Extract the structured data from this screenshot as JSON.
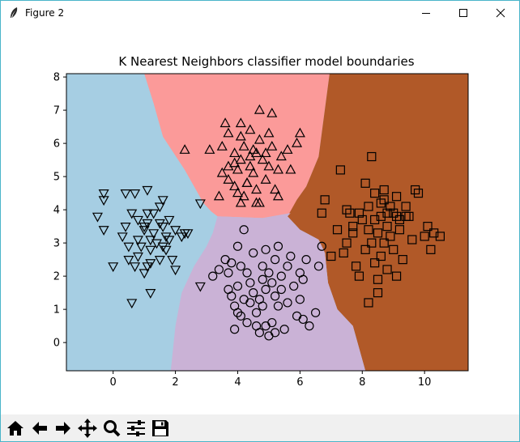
{
  "window": {
    "title": "Figure 2",
    "controls": [
      "minimize",
      "maximize",
      "close"
    ]
  },
  "toolbar": {
    "buttons": [
      {
        "name": "home",
        "icon": "home-icon"
      },
      {
        "name": "back",
        "icon": "arrow-left-icon"
      },
      {
        "name": "forward",
        "icon": "arrow-right-icon"
      },
      {
        "name": "pan",
        "icon": "move-icon"
      },
      {
        "name": "zoom",
        "icon": "magnifier-icon"
      },
      {
        "name": "configure-subplots",
        "icon": "sliders-icon"
      },
      {
        "name": "save",
        "icon": "floppy-disk-icon"
      }
    ]
  },
  "chart_data": {
    "type": "scatter",
    "title": "K Nearest Neighbors classifier model boundaries",
    "xlabel": "",
    "ylabel": "",
    "xlim": [
      -1.5,
      11.4
    ],
    "ylim": [
      -0.85,
      8.1
    ],
    "xticks": [
      0,
      2,
      4,
      6,
      8,
      10
    ],
    "yticks": [
      0,
      1,
      2,
      3,
      4,
      5,
      6,
      7,
      8
    ],
    "grid": false,
    "region_colors": {
      "triangle-down": "#a6cee3",
      "triangle-up": "#fb9a99",
      "circle": "#cab2d6",
      "square": "#b15928"
    },
    "series": [
      {
        "marker": "triangle-down",
        "points": [
          [
            -0.5,
            3.8
          ],
          [
            -0.3,
            4.5
          ],
          [
            -0.3,
            4.3
          ],
          [
            -0.3,
            3.4
          ],
          [
            0,
            2.3
          ],
          [
            0.3,
            3.2
          ],
          [
            0.4,
            3.5
          ],
          [
            0.4,
            4.5
          ],
          [
            0.5,
            2.9
          ],
          [
            0.5,
            2.5
          ],
          [
            0.6,
            1.2
          ],
          [
            0.6,
            3.9
          ],
          [
            0.7,
            4.5
          ],
          [
            0.7,
            2.3
          ],
          [
            0.8,
            3.1
          ],
          [
            0.8,
            2.6
          ],
          [
            0.8,
            3.7
          ],
          [
            0.9,
            2.9
          ],
          [
            1,
            3.5
          ],
          [
            1,
            2.1
          ],
          [
            1,
            3.4
          ],
          [
            1.1,
            4.6
          ],
          [
            1.1,
            3.6
          ],
          [
            1.1,
            3.9
          ],
          [
            1.1,
            2.3
          ],
          [
            1.2,
            3.1
          ],
          [
            1.2,
            2.8
          ],
          [
            1.2,
            2.4
          ],
          [
            1.2,
            1.5
          ],
          [
            1.3,
            3.3
          ],
          [
            1.3,
            3.9
          ],
          [
            1.4,
            3
          ],
          [
            1.5,
            3.6
          ],
          [
            1.5,
            2.5
          ],
          [
            1.5,
            4.1
          ],
          [
            1.6,
            3.5
          ],
          [
            1.6,
            4.3
          ],
          [
            1.6,
            2.9
          ],
          [
            1.7,
            2.8
          ],
          [
            1.7,
            3.2
          ],
          [
            1.8,
            3.1
          ],
          [
            1.8,
            3.7
          ],
          [
            1.9,
            2.5
          ],
          [
            2,
            3.4
          ],
          [
            2,
            2.2
          ],
          [
            2.2,
            3.2
          ],
          [
            2.3,
            3.3
          ],
          [
            2.4,
            3.3
          ],
          [
            2.8,
            4.2
          ],
          [
            2.8,
            1.7
          ]
        ]
      },
      {
        "marker": "triangle-up",
        "points": [
          [
            2.3,
            5.8
          ],
          [
            3.1,
            5.8
          ],
          [
            3.4,
            4.4
          ],
          [
            3.5,
            5.9
          ],
          [
            3.5,
            5.1
          ],
          [
            3.6,
            6.6
          ],
          [
            3.7,
            4.9
          ],
          [
            3.7,
            6.3
          ],
          [
            3.7,
            5.3
          ],
          [
            3.9,
            5.4
          ],
          [
            3.9,
            4.7
          ],
          [
            3.9,
            5.7
          ],
          [
            4,
            5.2
          ],
          [
            4,
            4.5
          ],
          [
            4.1,
            4.2
          ],
          [
            4.1,
            5.5
          ],
          [
            4.1,
            6.2
          ],
          [
            4.1,
            6.6
          ],
          [
            4.2,
            5.9
          ],
          [
            4.2,
            4.4
          ],
          [
            4.3,
            4.8
          ],
          [
            4.4,
            5.3
          ],
          [
            4.4,
            6.4
          ],
          [
            4.4,
            5.6
          ],
          [
            4.5,
            5.8
          ],
          [
            4.5,
            5.1
          ],
          [
            4.6,
            4.6
          ],
          [
            4.6,
            5.7
          ],
          [
            4.7,
            4.2
          ],
          [
            4.7,
            6.1
          ],
          [
            4.8,
            5.5
          ],
          [
            4.9,
            5.7
          ],
          [
            4.9,
            4.9
          ],
          [
            5,
            6.3
          ],
          [
            5,
            5.3
          ],
          [
            5.1,
            6.9
          ],
          [
            5.1,
            5.9
          ],
          [
            5.2,
            4.6
          ],
          [
            5.3,
            4.4
          ],
          [
            5.3,
            5.2
          ],
          [
            5.4,
            5.6
          ],
          [
            5.6,
            5.8
          ],
          [
            5.7,
            5.2
          ],
          [
            5.9,
            6
          ],
          [
            6,
            6.3
          ],
          [
            4.7,
            7
          ],
          [
            4.6,
            4.2
          ],
          [
            4.3,
            4.8
          ]
        ]
      },
      {
        "marker": "circle",
        "points": [
          [
            3.2,
            2
          ],
          [
            3.4,
            2.2
          ],
          [
            3.6,
            2.5
          ],
          [
            3.7,
            2.1
          ],
          [
            3.7,
            1.6
          ],
          [
            3.8,
            2.4
          ],
          [
            3.8,
            1.4
          ],
          [
            3.9,
            1.1
          ],
          [
            3.9,
            0.4
          ],
          [
            4,
            2.9
          ],
          [
            4,
            1.7
          ],
          [
            4,
            0.9
          ],
          [
            4.1,
            2.3
          ],
          [
            4.1,
            0.8
          ],
          [
            4.2,
            3.4
          ],
          [
            4.2,
            1.3
          ],
          [
            4.3,
            2.1
          ],
          [
            4.3,
            0.6
          ],
          [
            4.4,
            1.8
          ],
          [
            4.4,
            1.2
          ],
          [
            4.5,
            2.7
          ],
          [
            4.5,
            1.5
          ],
          [
            4.6,
            0.9
          ],
          [
            4.6,
            0.5
          ],
          [
            4.7,
            1.3
          ],
          [
            4.7,
            0.3
          ],
          [
            4.8,
            2.3
          ],
          [
            4.8,
            1.9
          ],
          [
            4.8,
            1.1
          ],
          [
            4.9,
            2.8
          ],
          [
            4.9,
            1.6
          ],
          [
            4.9,
            0.5
          ],
          [
            5,
            2.1
          ],
          [
            5,
            0.2
          ],
          [
            5.1,
            1.8
          ],
          [
            5.1,
            0.6
          ],
          [
            5.2,
            2.5
          ],
          [
            5.2,
            1.4
          ],
          [
            5.2,
            0.3
          ],
          [
            5.3,
            2.9
          ],
          [
            5.3,
            1.1
          ],
          [
            5.4,
            2
          ],
          [
            5.4,
            1.6
          ],
          [
            5.5,
            0.4
          ],
          [
            5.6,
            2.3
          ],
          [
            5.6,
            1.2
          ],
          [
            5.7,
            2.6
          ],
          [
            5.8,
            1.7
          ],
          [
            5.9,
            0.8
          ],
          [
            6,
            2.1
          ],
          [
            6,
            1.3
          ],
          [
            6.1,
            0.7
          ],
          [
            6.2,
            2.5
          ],
          [
            6.3,
            0.5
          ],
          [
            6.5,
            0.9
          ],
          [
            6.6,
            2.3
          ],
          [
            6.7,
            2.9
          ],
          [
            6.1,
            1.9
          ]
        ]
      },
      {
        "marker": "square",
        "points": [
          [
            6.7,
            3.9
          ],
          [
            6.8,
            4.3
          ],
          [
            7,
            2.6
          ],
          [
            7.2,
            3.4
          ],
          [
            7.3,
            5.2
          ],
          [
            7.4,
            2.7
          ],
          [
            7.5,
            3
          ],
          [
            7.6,
            3.9
          ],
          [
            7.7,
            3.3
          ],
          [
            7.8,
            2.3
          ],
          [
            7.9,
            2
          ],
          [
            7.9,
            3.9
          ],
          [
            8,
            3.7
          ],
          [
            8.1,
            2.8
          ],
          [
            8.1,
            4.8
          ],
          [
            8.2,
            4.1
          ],
          [
            8.2,
            3.4
          ],
          [
            8.3,
            5.6
          ],
          [
            8.3,
            3
          ],
          [
            8.4,
            4.5
          ],
          [
            8.4,
            3.7
          ],
          [
            8.4,
            2.4
          ],
          [
            8.5,
            3.3
          ],
          [
            8.5,
            1.5
          ],
          [
            8.6,
            4.2
          ],
          [
            8.6,
            3.8
          ],
          [
            8.6,
            2.6
          ],
          [
            8.7,
            3
          ],
          [
            8.7,
            4.6
          ],
          [
            8.8,
            3.5
          ],
          [
            8.8,
            2.2
          ],
          [
            8.9,
            4.1
          ],
          [
            8.9,
            3.2
          ],
          [
            9,
            3.9
          ],
          [
            9,
            2.8
          ],
          [
            9.1,
            4.4
          ],
          [
            9.1,
            2
          ],
          [
            9.2,
            3.4
          ],
          [
            9.2,
            3.7
          ],
          [
            9.3,
            2.5
          ],
          [
            9.4,
            4.1
          ],
          [
            9.5,
            3.8
          ],
          [
            9.6,
            3.1
          ],
          [
            9.7,
            4.6
          ],
          [
            9.8,
            4.5
          ],
          [
            10,
            3.2
          ],
          [
            10.1,
            3.5
          ],
          [
            10.2,
            2.8
          ],
          [
            10.3,
            3.3
          ],
          [
            10.5,
            3.2
          ],
          [
            8.5,
            1.9
          ],
          [
            8.2,
            1.2
          ],
          [
            7.7,
            3.5
          ],
          [
            8.7,
            4.3
          ],
          [
            9.4,
            3.8
          ],
          [
            7.5,
            4
          ],
          [
            8.8,
            3.9
          ],
          [
            9.1,
            3.8
          ]
        ]
      }
    ]
  }
}
